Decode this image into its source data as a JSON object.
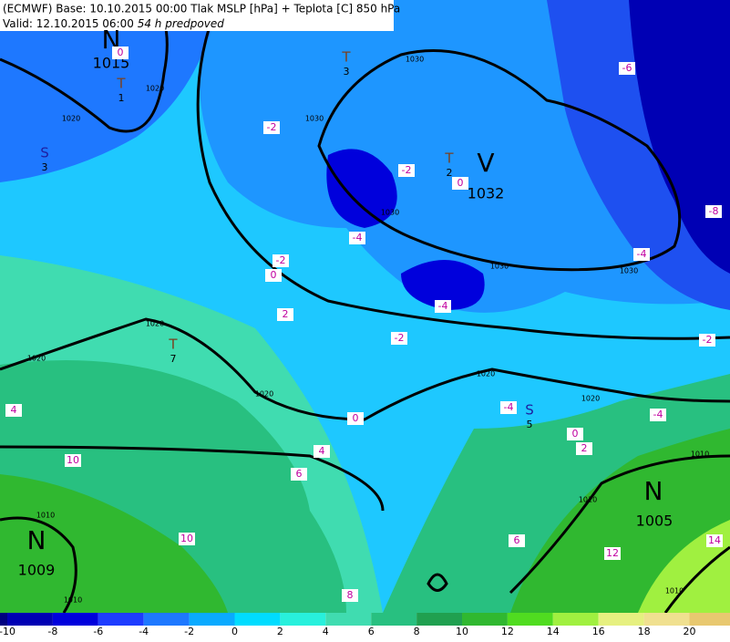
{
  "header": {
    "line1": "(ECMWF) Base: 10.10.2015 00:00 Tlak MSLP [hPa] + Teplota [C] 850 hPa",
    "valid": "Valid: 12.10.2015 06:00",
    "lead": "54 h predpoved"
  },
  "pressure_centers": [
    {
      "letter": "N",
      "value": 1015
    },
    {
      "letter": "V",
      "value": 1032
    },
    {
      "letter": "N",
      "value": 1005
    },
    {
      "letter": "N",
      "value": 1009
    }
  ],
  "minor_centers": [
    {
      "letter": "T",
      "value": 3
    },
    {
      "letter": "T",
      "value": 1
    },
    {
      "letter": "T",
      "value": 7
    },
    {
      "letter": "T",
      "value": 2
    },
    {
      "letter": "S",
      "value": 3
    },
    {
      "letter": "S",
      "value": 5
    }
  ],
  "temperature_labels": [
    -6,
    -8,
    -4,
    -2,
    -2,
    -2,
    0,
    -4,
    -2,
    0,
    2,
    -4,
    -2,
    0,
    -4,
    0,
    2,
    4,
    6,
    10,
    10,
    8,
    12,
    14,
    6,
    -4,
    4,
    0
  ],
  "isobar_labels": [
    1030,
    1030,
    1030,
    1030,
    1030,
    1020,
    1020,
    1020,
    1020,
    1020,
    1020,
    1020,
    1010,
    1010,
    1010,
    1010,
    1010
  ],
  "colorbar": {
    "labels": [
      -10,
      -8,
      -6,
      -4,
      -2,
      0,
      2,
      4,
      6,
      8,
      10,
      12,
      14,
      16,
      18,
      20
    ],
    "colors": [
      "#000080",
      "#0000b4",
      "#0000dc",
      "#1e3cff",
      "#1e78ff",
      "#0aaaff",
      "#00dcff",
      "#28f0dc",
      "#40dcb0",
      "#28c080",
      "#20a050",
      "#30b830",
      "#50dc20",
      "#a0f040",
      "#e6f080",
      "#f0e090",
      "#e8c870"
    ]
  }
}
